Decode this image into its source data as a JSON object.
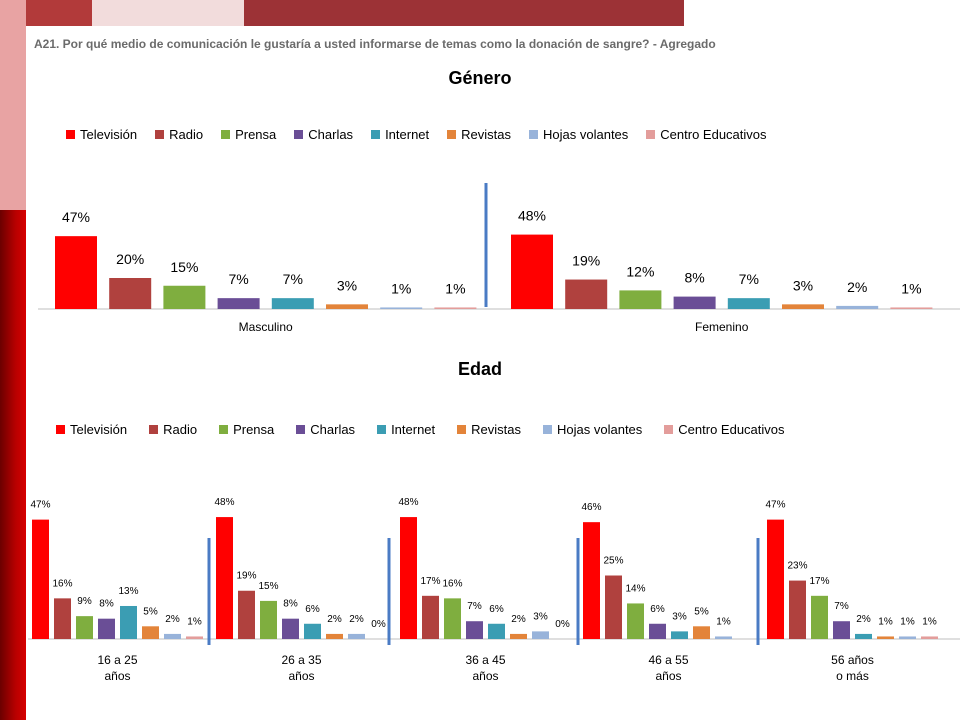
{
  "question": "A21. Por qué medio de comunicación le gustaría a usted informarse de temas como la donación de sangre? - Agregado",
  "series_names": [
    "Televisión",
    "Radio",
    "Prensa",
    "Charlas",
    "Internet",
    "Revistas",
    "Hojas volantes",
    "Centro Educativos"
  ],
  "colors": [
    "#ff0000",
    "#b0413e",
    "#7fae3f",
    "#6a4e96",
    "#3b9db3",
    "#e3843a",
    "#98b3da",
    "#e39d9b"
  ],
  "chart_data": [
    {
      "type": "bar",
      "title": "Género",
      "categories": [
        "Masculino",
        "Femenino"
      ],
      "series": [
        {
          "name": "Televisión",
          "values": [
            47,
            48
          ],
          "labels": [
            "47%",
            "48%"
          ]
        },
        {
          "name": "Radio",
          "values": [
            20,
            19
          ],
          "labels": [
            "20%",
            "19%"
          ]
        },
        {
          "name": "Prensa",
          "values": [
            15,
            12
          ],
          "labels": [
            "15%",
            "12%"
          ]
        },
        {
          "name": "Charlas",
          "values": [
            7,
            8
          ],
          "labels": [
            "7%",
            "8%"
          ]
        },
        {
          "name": "Internet",
          "values": [
            7,
            7
          ],
          "labels": [
            "7%",
            "7%"
          ]
        },
        {
          "name": "Revistas",
          "values": [
            3,
            3
          ],
          "labels": [
            "3%",
            "3%"
          ]
        },
        {
          "name": "Hojas volantes",
          "values": [
            1,
            2
          ],
          "labels": [
            "1%",
            "2%"
          ]
        },
        {
          "name": "Centro Educativos",
          "values": [
            1,
            1
          ],
          "labels": [
            "1%",
            "1%"
          ]
        }
      ],
      "legend": "top",
      "grid": false
    },
    {
      "type": "bar",
      "title": "Edad",
      "categories": [
        [
          "16 a 25",
          "años"
        ],
        [
          "26 a 35",
          "años"
        ],
        [
          "36 a 45",
          "años"
        ],
        [
          "46 a 55",
          "años"
        ],
        [
          "56 años",
          "o más"
        ]
      ],
      "series": [
        {
          "name": "Televisión",
          "values": [
            47,
            48,
            48,
            46,
            47
          ],
          "labels": [
            "47%",
            "48%",
            "48%",
            "46%",
            "47%"
          ]
        },
        {
          "name": "Radio",
          "values": [
            16,
            19,
            17,
            25,
            23
          ],
          "labels": [
            "16%",
            "19%",
            "17%",
            "25%",
            "23%"
          ]
        },
        {
          "name": "Prensa",
          "values": [
            9,
            15,
            16,
            14,
            17
          ],
          "labels": [
            "9%",
            "15%",
            "16%",
            "14%",
            "17%"
          ]
        },
        {
          "name": "Charlas",
          "values": [
            8,
            8,
            7,
            6,
            7
          ],
          "labels": [
            "8%",
            "8%",
            "7%",
            "6%",
            "7%"
          ]
        },
        {
          "name": "Internet",
          "values": [
            13,
            6,
            6,
            3,
            2
          ],
          "labels": [
            "13%",
            "6%",
            "6%",
            "3%",
            "2%"
          ]
        },
        {
          "name": "Revistas",
          "values": [
            5,
            2,
            2,
            5,
            1
          ],
          "labels": [
            "5%",
            "2%",
            "2%",
            "5%",
            "1%"
          ]
        },
        {
          "name": "Hojas volantes",
          "values": [
            2,
            2,
            3,
            1,
            1
          ],
          "labels": [
            "2%",
            "2%",
            "3%",
            "1%",
            "1%"
          ]
        },
        {
          "name": "Centro Educativos",
          "values": [
            1,
            0,
            0,
            0,
            1
          ],
          "labels": [
            "1%",
            "0%",
            "0%",
            "",
            "1%"
          ]
        }
      ],
      "legend": "top",
      "grid": false
    }
  ]
}
